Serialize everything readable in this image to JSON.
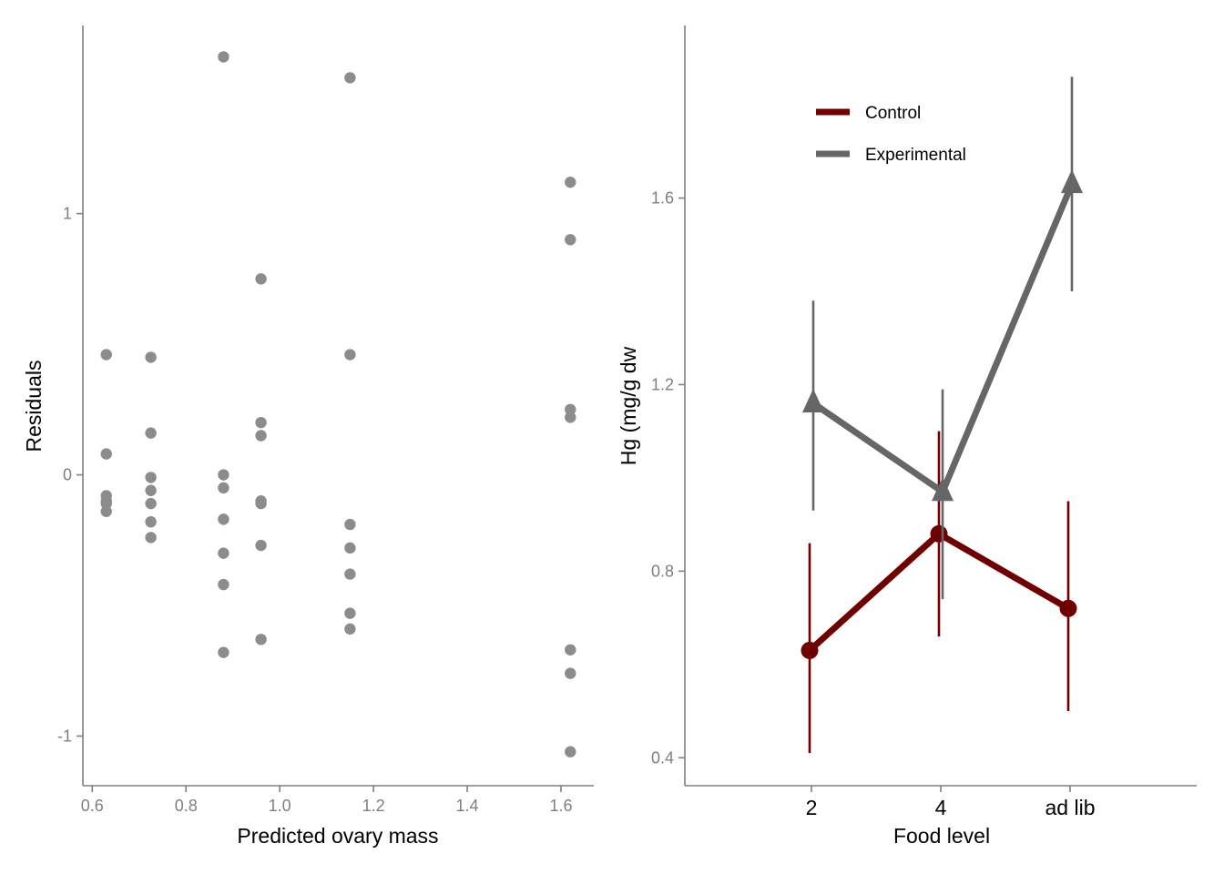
{
  "chart_data": [
    {
      "type": "scatter",
      "xlabel": "Predicted ovary mass",
      "ylabel": "Residuals",
      "xlim": [
        0.58,
        1.67
      ],
      "ylim": [
        -1.19,
        1.72
      ],
      "x_ticks": [
        0.6,
        0.8,
        1.0,
        1.2,
        1.4,
        1.6
      ],
      "x_tick_labels": [
        "0.6",
        "0.8",
        "1.0",
        "1.2",
        "1.4",
        "1.6"
      ],
      "y_ticks": [
        -1,
        0,
        1
      ],
      "y_tick_labels": [
        "-1",
        "0",
        "1"
      ],
      "grid": false,
      "point_color": "#8c8c8c",
      "points": [
        {
          "x": 0.63,
          "y": 0.46
        },
        {
          "x": 0.63,
          "y": 0.08
        },
        {
          "x": 0.63,
          "y": -0.08
        },
        {
          "x": 0.63,
          "y": -0.1
        },
        {
          "x": 0.63,
          "y": -0.11
        },
        {
          "x": 0.63,
          "y": -0.14
        },
        {
          "x": 0.725,
          "y": 0.45
        },
        {
          "x": 0.725,
          "y": 0.16
        },
        {
          "x": 0.725,
          "y": -0.01
        },
        {
          "x": 0.725,
          "y": -0.06
        },
        {
          "x": 0.725,
          "y": -0.11
        },
        {
          "x": 0.725,
          "y": -0.18
        },
        {
          "x": 0.725,
          "y": -0.24
        },
        {
          "x": 0.88,
          "y": 1.6
        },
        {
          "x": 0.88,
          "y": 0.0
        },
        {
          "x": 0.88,
          "y": -0.05
        },
        {
          "x": 0.88,
          "y": -0.17
        },
        {
          "x": 0.88,
          "y": -0.3
        },
        {
          "x": 0.88,
          "y": -0.42
        },
        {
          "x": 0.88,
          "y": -0.68
        },
        {
          "x": 0.96,
          "y": 0.75
        },
        {
          "x": 0.96,
          "y": 0.2
        },
        {
          "x": 0.96,
          "y": 0.15
        },
        {
          "x": 0.96,
          "y": -0.1
        },
        {
          "x": 0.96,
          "y": -0.11
        },
        {
          "x": 0.96,
          "y": -0.27
        },
        {
          "x": 0.96,
          "y": -0.63
        },
        {
          "x": 1.15,
          "y": 1.52
        },
        {
          "x": 1.15,
          "y": 0.46
        },
        {
          "x": 1.15,
          "y": -0.19
        },
        {
          "x": 1.15,
          "y": -0.28
        },
        {
          "x": 1.15,
          "y": -0.38
        },
        {
          "x": 1.15,
          "y": -0.53
        },
        {
          "x": 1.15,
          "y": -0.59
        },
        {
          "x": 1.62,
          "y": 1.12
        },
        {
          "x": 1.62,
          "y": 0.9
        },
        {
          "x": 1.62,
          "y": 0.25
        },
        {
          "x": 1.62,
          "y": 0.22
        },
        {
          "x": 1.62,
          "y": -0.67
        },
        {
          "x": 1.62,
          "y": -0.76
        },
        {
          "x": 1.62,
          "y": -1.06
        }
      ]
    },
    {
      "type": "line",
      "xlabel": "Food level",
      "ylabel": "Hg (mg/g dw",
      "categories": [
        "2",
        "4",
        "ad lib"
      ],
      "ylim": [
        0.34,
        1.97
      ],
      "y_ticks": [
        0.4,
        0.8,
        1.2,
        1.6
      ],
      "y_tick_labels": [
        "0.4",
        "0.8",
        "1.2",
        "1.6"
      ],
      "grid": false,
      "legend_position": "top-left",
      "series": [
        {
          "name": "Control",
          "color": "#700000",
          "marker": "circle",
          "values": [
            0.63,
            0.88,
            0.72
          ],
          "lower": [
            0.41,
            0.66,
            0.5
          ],
          "upper": [
            0.86,
            1.1,
            0.95
          ]
        },
        {
          "name": "Experimental",
          "color": "#666666",
          "marker": "triangle",
          "values": [
            1.16,
            0.97,
            1.63
          ],
          "lower": [
            0.93,
            0.74,
            1.4
          ],
          "upper": [
            1.38,
            1.19,
            1.86
          ]
        }
      ]
    }
  ]
}
